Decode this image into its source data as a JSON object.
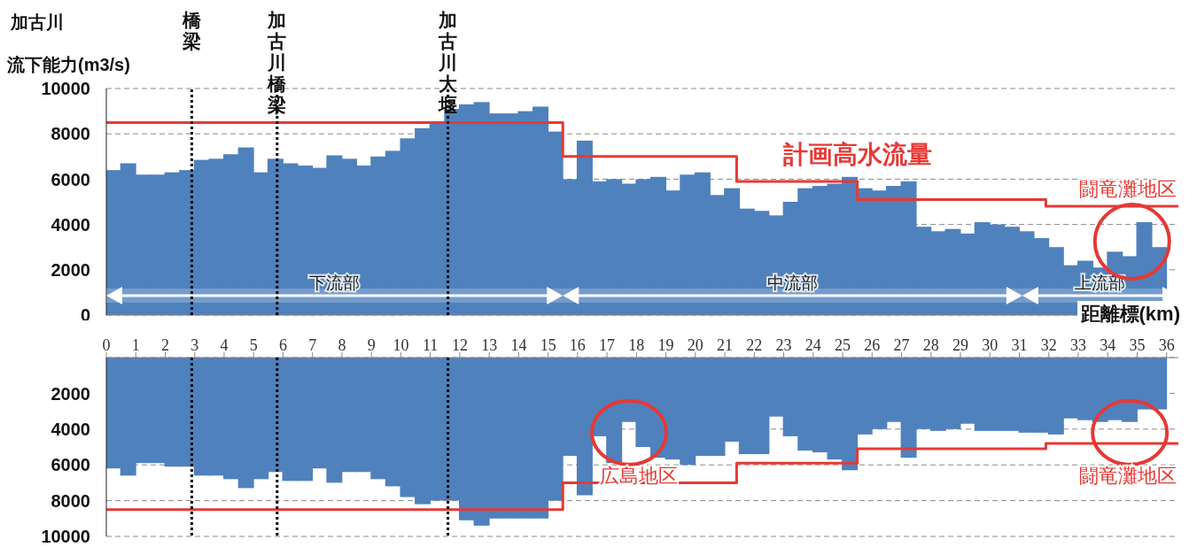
{
  "chart_data": [
    {
      "type": "bar",
      "title": "加古川",
      "ylabel": "流下能力(m3/s)",
      "x": [
        0.25,
        0.75,
        1.25,
        1.75,
        2.25,
        2.75,
        3.25,
        3.75,
        4.25,
        4.75,
        5.25,
        5.75,
        6.25,
        6.75,
        7.25,
        7.75,
        8.25,
        8.75,
        9.25,
        9.75,
        10.25,
        10.75,
        11.25,
        11.75,
        12.25,
        12.75,
        13.25,
        13.75,
        14.25,
        14.75,
        15.25,
        15.75,
        16.25,
        16.75,
        17.25,
        17.75,
        18.25,
        18.75,
        19.25,
        19.75,
        20.25,
        20.75,
        21.25,
        21.75,
        22.25,
        22.75,
        23.25,
        23.75,
        24.25,
        24.75,
        25.25,
        25.75,
        26.25,
        26.75,
        27.25,
        27.75,
        28.25,
        28.75,
        29.25,
        29.75,
        30.25,
        30.75,
        31.25,
        31.75,
        32.25,
        32.75,
        33.25,
        33.75,
        34.25,
        34.75,
        35.25,
        35.75
      ],
      "xlim": [
        0,
        36.4
      ],
      "xticks": [
        0,
        1,
        2,
        3,
        4,
        5,
        6,
        7,
        8,
        9,
        10,
        11,
        12,
        13,
        14,
        15,
        16,
        17,
        18,
        19,
        20,
        21,
        22,
        23,
        24,
        25,
        26,
        27,
        28,
        29,
        30,
        31,
        32,
        33,
        34,
        35,
        36
      ],
      "ylim": [
        0,
        10000
      ],
      "yticks": [
        0,
        2000,
        4000,
        6000,
        8000,
        10000
      ],
      "tick_labels": "y",
      "grid": "y",
      "series": [
        {
          "color": "#4f81bd",
          "values": [
            6400,
            6700,
            6200,
            6200,
            6300,
            6400,
            6850,
            6900,
            7100,
            7400,
            6300,
            6900,
            6700,
            6600,
            6500,
            7050,
            6900,
            6600,
            7000,
            7250,
            7800,
            8250,
            8500,
            9100,
            9300,
            9400,
            8900,
            8900,
            9000,
            9200,
            8100,
            6000,
            7700,
            5900,
            6000,
            5800,
            6000,
            6100,
            5500,
            6200,
            6300,
            5300,
            5600,
            4700,
            4600,
            4400,
            5000,
            5600,
            5700,
            5800,
            6100,
            5600,
            5500,
            5700,
            5900,
            3900,
            3700,
            3800,
            3600,
            4100,
            4000,
            3900,
            3700,
            3400,
            3000,
            2200,
            2400,
            2100,
            2800,
            2600,
            4100,
            3000
          ]
        },
        {
          "type": "step",
          "name": "計画高水流量",
          "color": "#e53935",
          "x": [
            0,
            15.5,
            21.4,
            25.5,
            31.9,
            36.4
          ],
          "values": [
            8500,
            7000,
            5900,
            5100,
            4800,
            4800
          ]
        }
      ],
      "ref_lines": [
        {
          "axis": "x",
          "value": 2.9,
          "label": "橋梁",
          "line_style": "dotted",
          "color": "#000000"
        },
        {
          "axis": "x",
          "value": 5.8,
          "label": "加古川橋梁",
          "line_style": "dotted",
          "color": "#000000"
        },
        {
          "axis": "x",
          "value": 11.6,
          "label": "加古川大堰",
          "line_style": "dotted",
          "color": "#000000"
        }
      ],
      "bands": [
        {
          "axis": "x",
          "from": 0,
          "to": 15.5,
          "label": "下流部",
          "color": "#ffffff"
        },
        {
          "axis": "x",
          "from": 15.5,
          "to": 31.1,
          "label": "中流部",
          "color": "#ffffff"
        },
        {
          "axis": "x",
          "from": 31.1,
          "to": 36.4,
          "label": "上流部",
          "color": "#ffffff"
        }
      ],
      "annotations": [
        {
          "text": "闘竜灘地区",
          "x": 35.25,
          "y": 4100
        }
      ]
    },
    {
      "type": "bar",
      "xlabel": "距離標(km)",
      "x": [
        0.25,
        0.75,
        1.25,
        1.75,
        2.25,
        2.75,
        3.25,
        3.75,
        4.25,
        4.75,
        5.25,
        5.75,
        6.25,
        6.75,
        7.25,
        7.75,
        8.25,
        8.75,
        9.25,
        9.75,
        10.25,
        10.75,
        11.25,
        11.75,
        12.25,
        12.75,
        13.25,
        13.75,
        14.25,
        14.75,
        15.25,
        15.75,
        16.25,
        16.75,
        17.25,
        17.75,
        18.25,
        18.75,
        19.25,
        19.75,
        20.25,
        20.75,
        21.25,
        21.75,
        22.25,
        22.75,
        23.25,
        23.75,
        24.25,
        24.75,
        25.25,
        25.75,
        26.25,
        26.75,
        27.25,
        27.75,
        28.25,
        28.75,
        29.25,
        29.75,
        30.25,
        30.75,
        31.25,
        31.75,
        32.25,
        32.75,
        33.25,
        33.75,
        34.25,
        34.75,
        35.25,
        35.75
      ],
      "xlim": [
        0,
        36.4
      ],
      "xticks": [
        0,
        1,
        2,
        3,
        4,
        5,
        6,
        7,
        8,
        9,
        10,
        11,
        12,
        13,
        14,
        15,
        16,
        17,
        18,
        19,
        20,
        21,
        22,
        23,
        24,
        25,
        26,
        27,
        28,
        29,
        30,
        31,
        32,
        33,
        34,
        35,
        36
      ],
      "ylim": [
        10000,
        0
      ],
      "yticks": [
        2000,
        4000,
        6000,
        8000,
        10000
      ],
      "grid": "y",
      "series": [
        {
          "color": "#4f81bd",
          "values": [
            6200,
            6600,
            5900,
            5900,
            6100,
            6100,
            6600,
            6600,
            6800,
            7300,
            6800,
            6400,
            6900,
            6900,
            6200,
            7000,
            6400,
            6400,
            6800,
            7200,
            7800,
            8200,
            8000,
            8000,
            9100,
            9400,
            9000,
            9000,
            9000,
            9000,
            8000,
            5500,
            7700,
            4400,
            5900,
            3600,
            5000,
            5600,
            5700,
            6000,
            5500,
            5500,
            4700,
            5400,
            5400,
            3300,
            4400,
            5200,
            5300,
            5700,
            6300,
            4300,
            4000,
            3600,
            5600,
            4000,
            4100,
            4000,
            3700,
            4100,
            4100,
            4100,
            4200,
            4200,
            4300,
            3400,
            3500,
            3600,
            3500,
            3600,
            2900,
            2900
          ]
        },
        {
          "type": "step",
          "color": "#e53935",
          "x": [
            0,
            15.5,
            21.4,
            25.5,
            31.9,
            36.4
          ],
          "values": [
            8500,
            7000,
            5900,
            5100,
            4800,
            4800
          ]
        }
      ],
      "ref_lines": [
        {
          "axis": "x",
          "value": 2.9,
          "line_style": "dotted",
          "color": "#000000"
        },
        {
          "axis": "x",
          "value": 5.8,
          "line_style": "dotted",
          "color": "#000000"
        },
        {
          "axis": "x",
          "value": 11.6,
          "line_style": "dotted",
          "color": "#000000"
        }
      ],
      "annotations": [
        {
          "text": "広島地区",
          "x": 17.75,
          "y": 3600
        },
        {
          "text": "闘竜灘地区",
          "x": 34.75,
          "y": 3600
        }
      ]
    }
  ]
}
